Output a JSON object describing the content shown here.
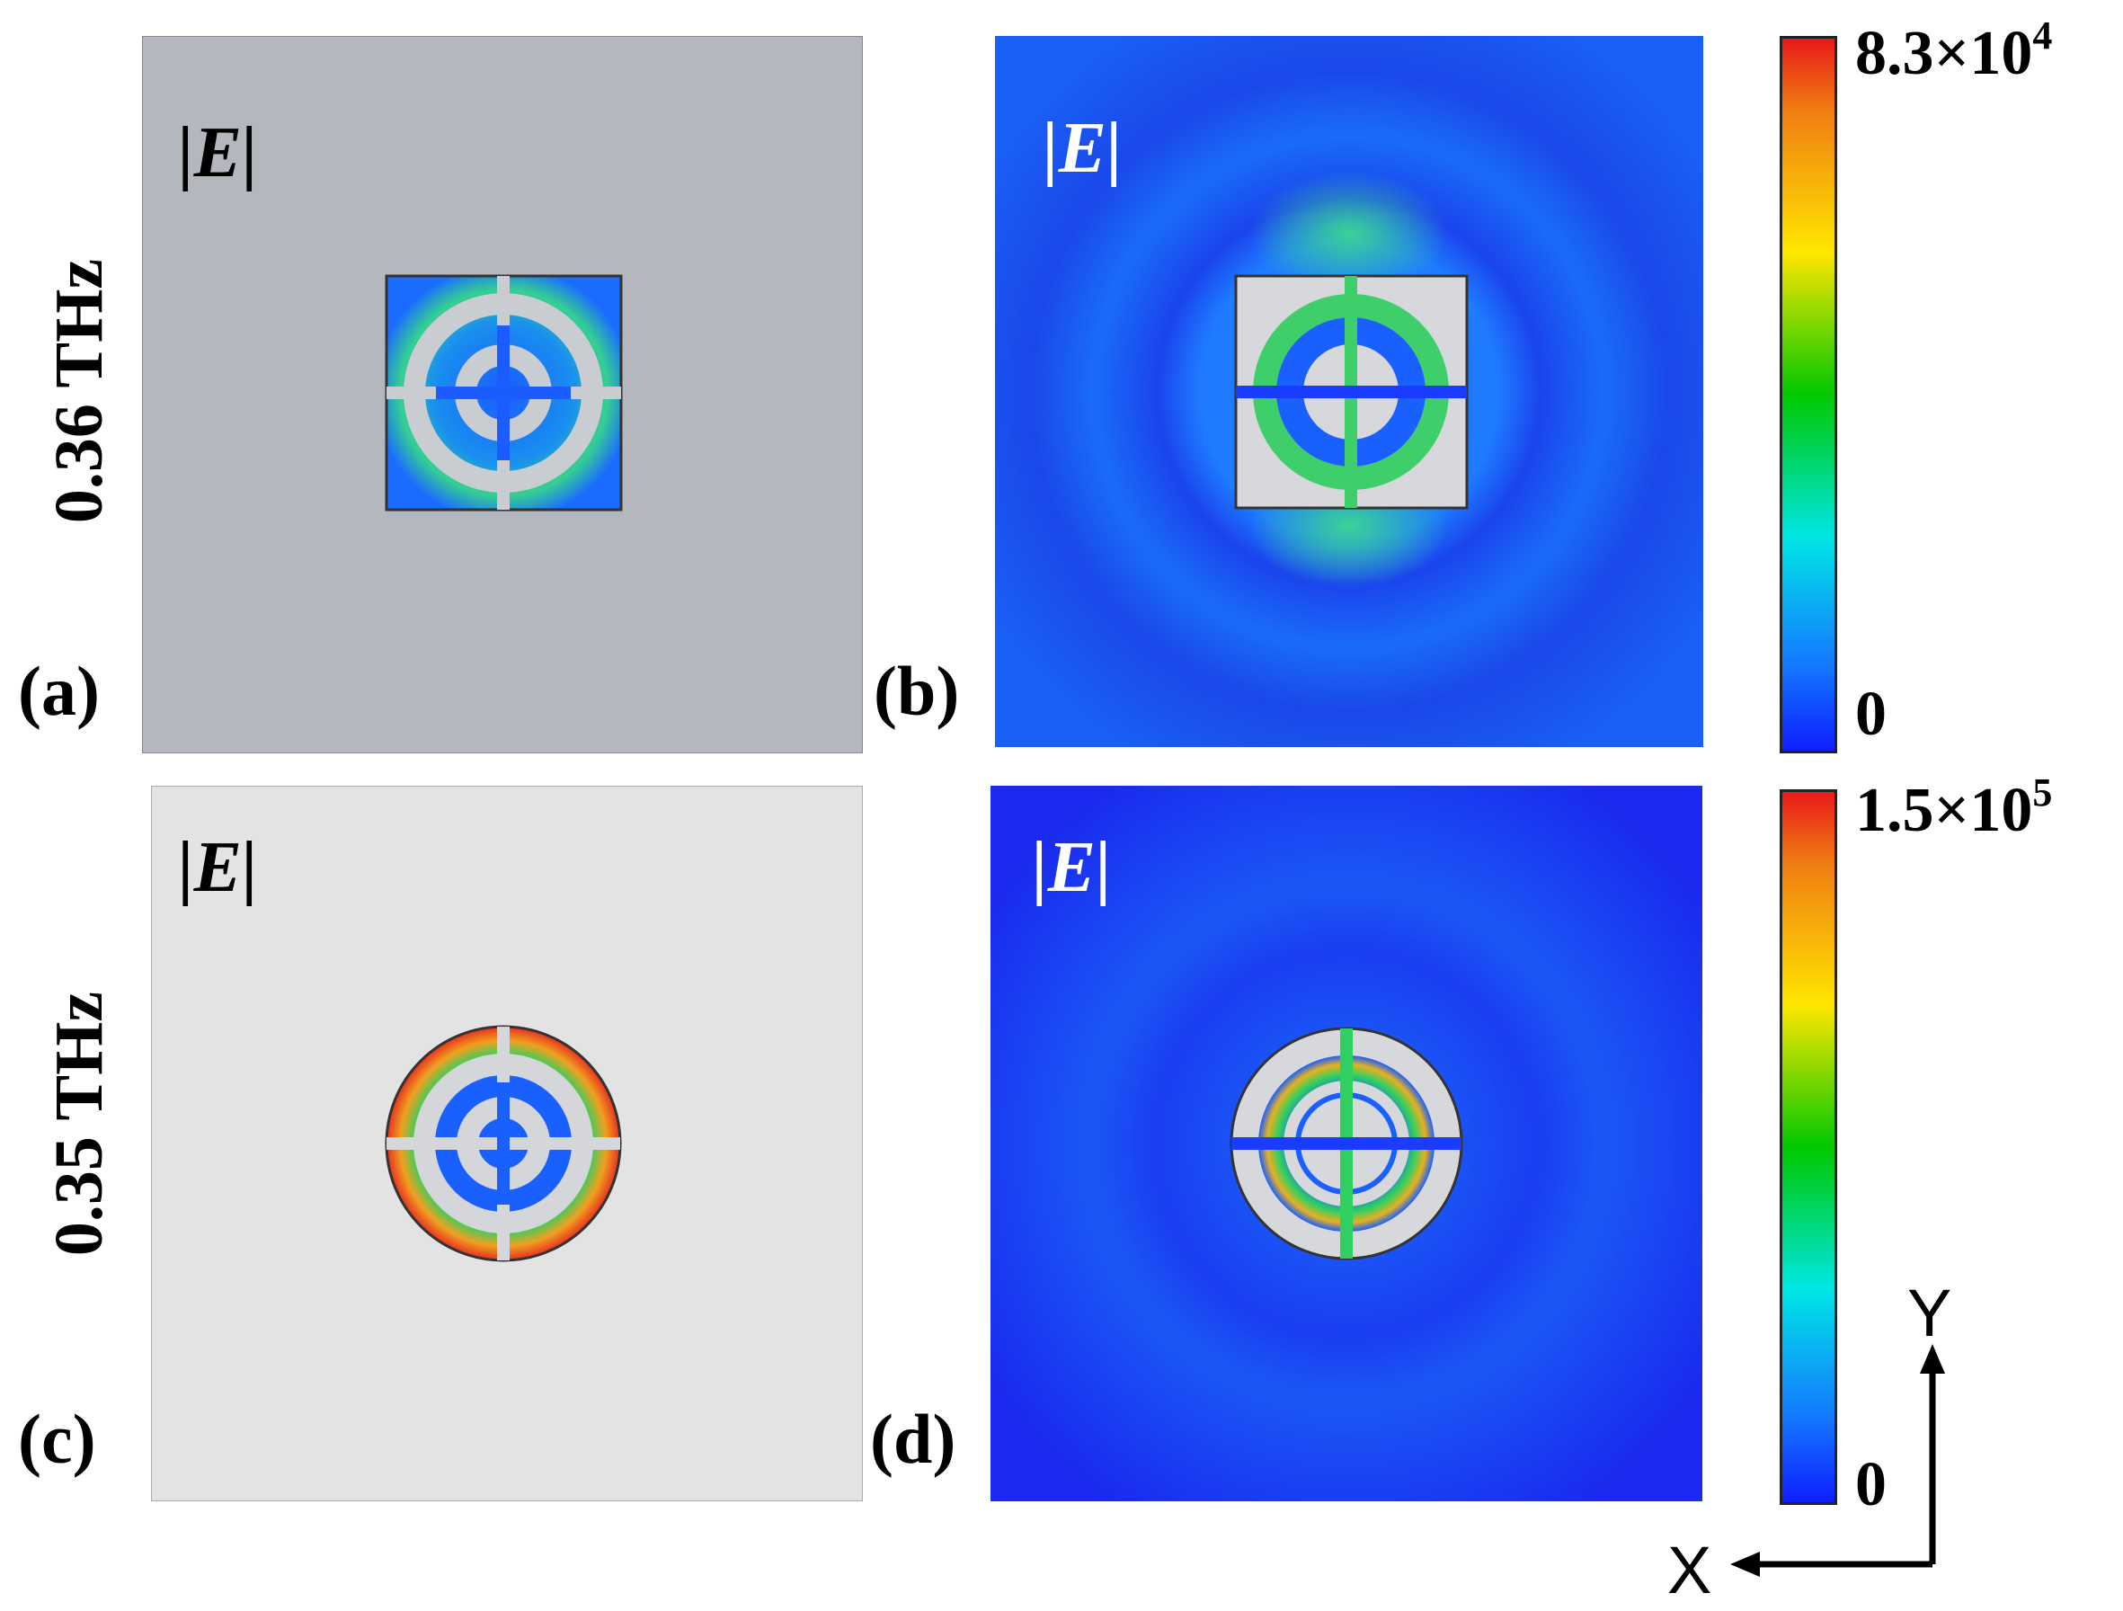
{
  "rows": [
    {
      "frequency": "0.36 THz"
    },
    {
      "frequency": "0.35 THz"
    }
  ],
  "panels": [
    {
      "label": "(a)",
      "field": "|E|"
    },
    {
      "label": "(b)",
      "field": "|E|"
    },
    {
      "label": "(c)",
      "field": "|E|"
    },
    {
      "label": "(d)",
      "field": "|E|"
    }
  ],
  "colorbars": [
    {
      "max_base": "8.3",
      "max_exp": "4",
      "min": "0"
    },
    {
      "max_base": "1.5",
      "max_exp": "5",
      "min": "0"
    }
  ],
  "axes": {
    "x": "X",
    "y": "Y"
  },
  "colors": {
    "field_low": "#0f1eff",
    "field_mid": "#00c800",
    "field_high": "#e81a1a",
    "metal_gray": "#b4b7bd",
    "metal_light": "#e3e3e3"
  }
}
